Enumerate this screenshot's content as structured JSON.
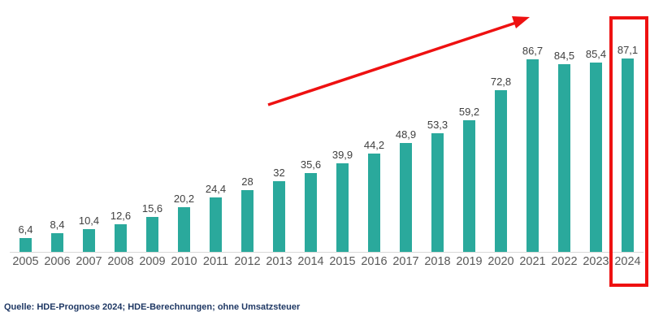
{
  "chart_data": {
    "type": "bar",
    "categories": [
      "2005",
      "2006",
      "2007",
      "2008",
      "2009",
      "2010",
      "2011",
      "2012",
      "2013",
      "2014",
      "2015",
      "2016",
      "2017",
      "2018",
      "2019",
      "2020",
      "2021",
      "2022",
      "2023",
      "2024"
    ],
    "values": [
      6.4,
      8.4,
      10.4,
      12.6,
      15.6,
      20.2,
      24.4,
      28,
      32,
      35.6,
      39.9,
      44.2,
      48.9,
      53.3,
      59.2,
      72.8,
      86.7,
      84.5,
      85.4,
      87.1
    ],
    "value_labels": [
      "6,4",
      "8,4",
      "10,4",
      "12,6",
      "15,6",
      "20,2",
      "24,4",
      "28",
      "32",
      "35,6",
      "39,9",
      "44,2",
      "48,9",
      "53,3",
      "59,2",
      "72,8",
      "86,7",
      "84,5",
      "85,4",
      "87,1"
    ],
    "title": "",
    "xlabel": "",
    "ylabel": "",
    "ylim": [
      0,
      95
    ],
    "grid": false,
    "legend": false,
    "bar_color": "#2aa99c",
    "highlighted_category": "2024",
    "annotations": [
      {
        "type": "trend-arrow",
        "direction": "up-right",
        "color": "#ee1111"
      },
      {
        "type": "highlight-box",
        "target": "2024",
        "color": "#ee1111"
      }
    ]
  },
  "footer": {
    "source": "Quelle: HDE-Prognose 2024; HDE-Berechnungen; ohne Umsatzsteuer"
  },
  "colors": {
    "bar": "#2aa99c",
    "accent_red": "#ee1111",
    "value_label": "#404040",
    "axis_label": "#595959",
    "axis_line": "#d9d9d9",
    "source_text": "#1f3864"
  }
}
